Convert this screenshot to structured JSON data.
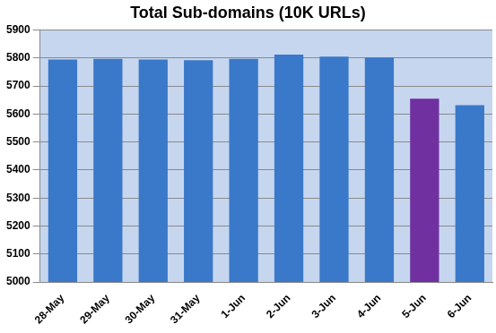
{
  "chart_data": {
    "type": "bar",
    "title": "Total Sub-domains (10K URLs)",
    "categories": [
      "28-May",
      "29-May",
      "30-May",
      "31-May",
      "1-Jun",
      "2-Jun",
      "3-Jun",
      "4-Jun",
      "5-Jun",
      "6-Jun"
    ],
    "values": [
      5795,
      5797,
      5795,
      5792,
      5797,
      5812,
      5805,
      5802,
      5655,
      5632
    ],
    "colors": [
      "#3a78c9",
      "#3a78c9",
      "#3a78c9",
      "#3a78c9",
      "#3a78c9",
      "#3a78c9",
      "#3a78c9",
      "#3a78c9",
      "#7030a0",
      "#3a78c9"
    ],
    "ylim": [
      5000,
      5900
    ],
    "yticks": [
      5000,
      5100,
      5200,
      5300,
      5400,
      5500,
      5600,
      5700,
      5800,
      5900
    ],
    "grid": true
  }
}
